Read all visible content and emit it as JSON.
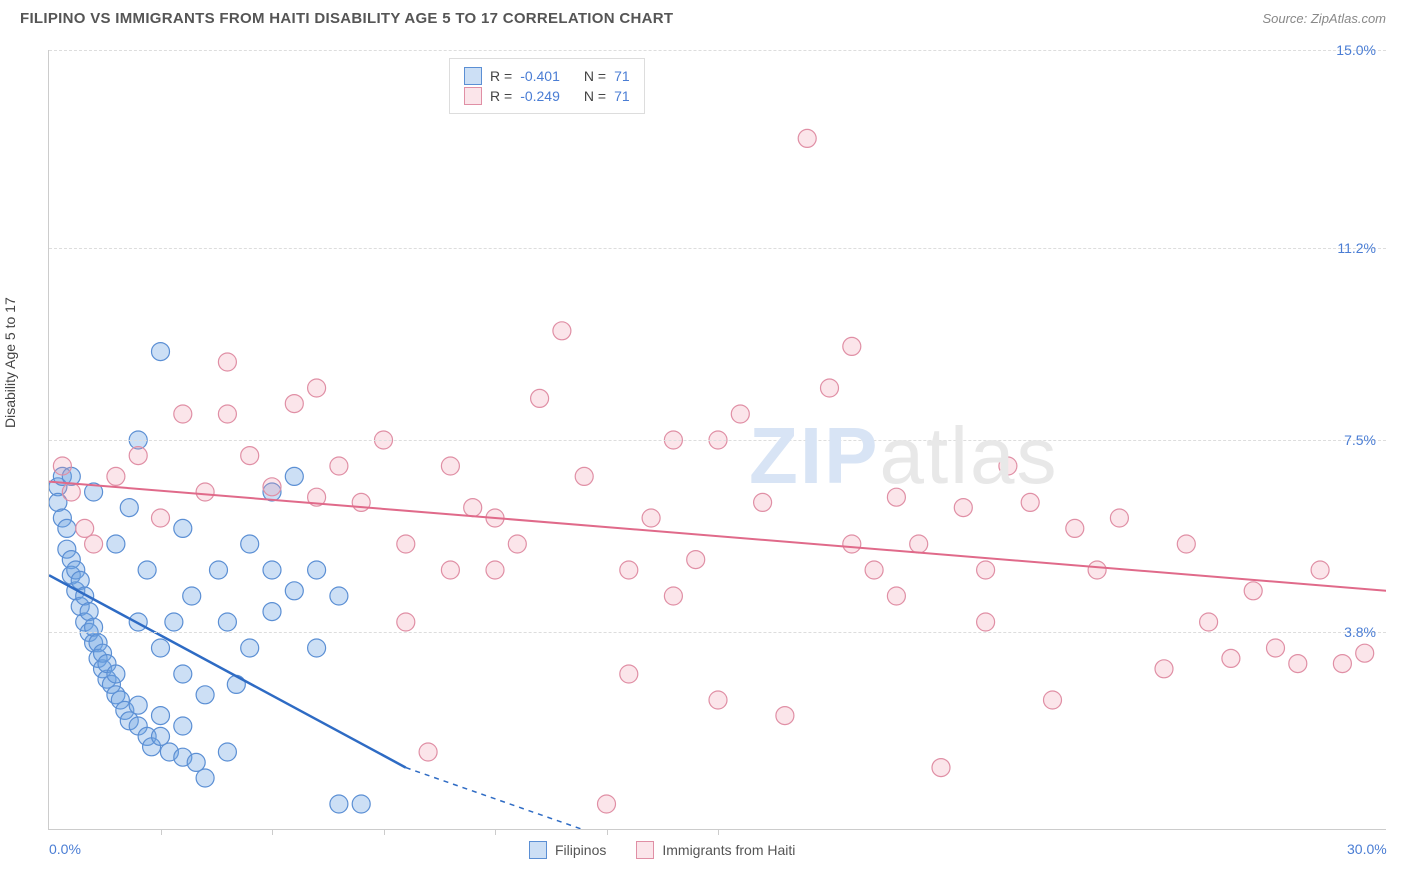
{
  "title": "FILIPINO VS IMMIGRANTS FROM HAITI DISABILITY AGE 5 TO 17 CORRELATION CHART",
  "source": "Source: ZipAtlas.com",
  "y_axis_label": "Disability Age 5 to 17",
  "watermark_bold": "ZIP",
  "watermark_rest": "atlas",
  "chart": {
    "type": "scatter",
    "xlim": [
      0,
      30
    ],
    "ylim": [
      0,
      15
    ],
    "x_ticks": [
      0,
      30
    ],
    "x_tick_labels": [
      "0.0%",
      "30.0%"
    ],
    "x_minor_ticks": [
      2.5,
      5,
      7.5,
      10,
      12.5,
      15
    ],
    "y_ticks": [
      3.8,
      7.5,
      11.2,
      15.0
    ],
    "y_tick_labels": [
      "3.8%",
      "7.5%",
      "11.2%",
      "15.0%"
    ],
    "background_color": "#ffffff",
    "grid_color": "#dddddd",
    "axis_color": "#cccccc",
    "tick_label_color": "#4a7dd4",
    "series": [
      {
        "name": "Filipinos",
        "fill_color": "rgba(108,162,225,0.35)",
        "stroke_color": "#5b8fd4",
        "marker_radius": 9,
        "line_color": "#2e6bc4",
        "line_width": 2.5,
        "trend": {
          "x1": 0,
          "y1": 4.9,
          "x2": 8,
          "y2": 1.2,
          "dash_x2": 12,
          "dash_y2": 0
        },
        "R": "-0.401",
        "N": "71",
        "points": [
          [
            0.2,
            6.6
          ],
          [
            0.2,
            6.3
          ],
          [
            0.3,
            6.0
          ],
          [
            0.3,
            6.8
          ],
          [
            0.4,
            5.8
          ],
          [
            0.4,
            5.4
          ],
          [
            0.5,
            5.2
          ],
          [
            0.5,
            4.9
          ],
          [
            0.6,
            4.6
          ],
          [
            0.6,
            5.0
          ],
          [
            0.7,
            4.3
          ],
          [
            0.7,
            4.8
          ],
          [
            0.8,
            4.5
          ],
          [
            0.8,
            4.0
          ],
          [
            0.9,
            3.8
          ],
          [
            0.9,
            4.2
          ],
          [
            1.0,
            3.6
          ],
          [
            1.0,
            3.9
          ],
          [
            1.1,
            3.6
          ],
          [
            1.1,
            3.3
          ],
          [
            1.2,
            3.1
          ],
          [
            1.2,
            3.4
          ],
          [
            1.3,
            2.9
          ],
          [
            1.3,
            3.2
          ],
          [
            1.4,
            2.8
          ],
          [
            1.5,
            2.6
          ],
          [
            1.5,
            3.0
          ],
          [
            1.6,
            2.5
          ],
          [
            1.7,
            2.3
          ],
          [
            1.8,
            2.1
          ],
          [
            2.0,
            2.0
          ],
          [
            2.0,
            2.4
          ],
          [
            2.2,
            1.8
          ],
          [
            2.3,
            1.6
          ],
          [
            2.5,
            1.8
          ],
          [
            2.5,
            2.2
          ],
          [
            2.7,
            1.5
          ],
          [
            3.0,
            2.0
          ],
          [
            3.0,
            1.4
          ],
          [
            3.3,
            1.3
          ],
          [
            3.5,
            2.6
          ],
          [
            3.5,
            1.0
          ],
          [
            4.0,
            1.5
          ],
          [
            4.0,
            4.0
          ],
          [
            4.2,
            2.8
          ],
          [
            4.5,
            3.5
          ],
          [
            5.0,
            5.0
          ],
          [
            5.0,
            4.2
          ],
          [
            5.5,
            6.8
          ],
          [
            5.5,
            4.6
          ],
          [
            6.0,
            3.5
          ],
          [
            6.5,
            0.5
          ],
          [
            7.0,
            0.5
          ],
          [
            2.0,
            7.5
          ],
          [
            2.5,
            9.2
          ],
          [
            3.0,
            5.8
          ],
          [
            1.5,
            5.5
          ],
          [
            1.8,
            6.2
          ],
          [
            2.2,
            5.0
          ],
          [
            2.8,
            4.0
          ],
          [
            3.2,
            4.5
          ],
          [
            3.8,
            5.0
          ],
          [
            5.0,
            6.5
          ],
          [
            4.5,
            5.5
          ],
          [
            1.0,
            6.5
          ],
          [
            0.5,
            6.8
          ],
          [
            6.0,
            5.0
          ],
          [
            6.5,
            4.5
          ],
          [
            2.0,
            4.0
          ],
          [
            2.5,
            3.5
          ],
          [
            3.0,
            3.0
          ]
        ]
      },
      {
        "name": "Immigrants from Haiti",
        "fill_color": "rgba(240,150,170,0.25)",
        "stroke_color": "#e08fa5",
        "marker_radius": 9,
        "line_color": "#e06a8a",
        "line_width": 2,
        "trend": {
          "x1": 0,
          "y1": 6.7,
          "x2": 30,
          "y2": 4.6
        },
        "R": "-0.249",
        "N": "71",
        "points": [
          [
            0.3,
            7.0
          ],
          [
            0.5,
            6.5
          ],
          [
            0.8,
            5.8
          ],
          [
            1.0,
            5.5
          ],
          [
            1.5,
            6.8
          ],
          [
            2.0,
            7.2
          ],
          [
            2.5,
            6.0
          ],
          [
            3.0,
            8.0
          ],
          [
            3.5,
            6.5
          ],
          [
            4.0,
            8.0
          ],
          [
            4.5,
            7.2
          ],
          [
            5.0,
            6.6
          ],
          [
            5.5,
            8.2
          ],
          [
            6.0,
            6.4
          ],
          [
            6.5,
            7.0
          ],
          [
            7.0,
            6.3
          ],
          [
            7.5,
            7.5
          ],
          [
            8.0,
            5.5
          ],
          [
            8.5,
            1.5
          ],
          [
            9.0,
            7.0
          ],
          [
            9.5,
            6.2
          ],
          [
            10.0,
            5.0
          ],
          [
            10.5,
            5.5
          ],
          [
            11.0,
            8.3
          ],
          [
            11.5,
            9.6
          ],
          [
            12.0,
            6.8
          ],
          [
            12.5,
            0.5
          ],
          [
            13.0,
            5.0
          ],
          [
            13.5,
            6.0
          ],
          [
            14.0,
            4.5
          ],
          [
            14.5,
            5.2
          ],
          [
            15.0,
            7.5
          ],
          [
            15.5,
            8.0
          ],
          [
            16.0,
            6.3
          ],
          [
            16.5,
            2.2
          ],
          [
            17.0,
            13.3
          ],
          [
            17.5,
            8.5
          ],
          [
            18.0,
            9.3
          ],
          [
            18.5,
            5.0
          ],
          [
            19.0,
            6.4
          ],
          [
            19.5,
            5.5
          ],
          [
            20.0,
            1.2
          ],
          [
            20.5,
            6.2
          ],
          [
            21.0,
            4.0
          ],
          [
            21.5,
            7.0
          ],
          [
            22.0,
            6.3
          ],
          [
            22.5,
            2.5
          ],
          [
            23.0,
            5.8
          ],
          [
            24.0,
            6.0
          ],
          [
            25.0,
            3.1
          ],
          [
            25.5,
            5.5
          ],
          [
            26.0,
            4.0
          ],
          [
            26.5,
            3.3
          ],
          [
            27.0,
            4.6
          ],
          [
            27.5,
            3.5
          ],
          [
            28.0,
            3.2
          ],
          [
            28.5,
            5.0
          ],
          [
            29.0,
            3.2
          ],
          [
            29.5,
            3.4
          ],
          [
            4.0,
            9.0
          ],
          [
            6.0,
            8.5
          ],
          [
            14.0,
            7.5
          ],
          [
            13.0,
            3.0
          ],
          [
            8.0,
            4.0
          ],
          [
            9.0,
            5.0
          ],
          [
            10.0,
            6.0
          ],
          [
            15.0,
            2.5
          ],
          [
            18.0,
            5.5
          ],
          [
            19.0,
            4.5
          ],
          [
            21.0,
            5.0
          ],
          [
            23.5,
            5.0
          ]
        ]
      }
    ]
  },
  "legend_top": {
    "r_label": "R =",
    "n_label": "N ="
  },
  "legend_bottom": {
    "items": [
      "Filipinos",
      "Immigrants from Haiti"
    ]
  }
}
